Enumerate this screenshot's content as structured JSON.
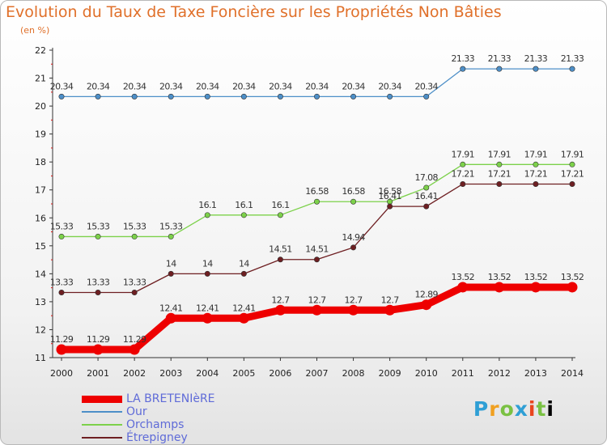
{
  "chart_data": {
    "type": "line",
    "title": "Evolution du Taux de Taxe Foncière sur les Propriétés Non Bâties",
    "subtitle": "(en %)",
    "xlabel": "",
    "ylabel": "",
    "x": [
      "2000",
      "2001",
      "2002",
      "2003",
      "2004",
      "2005",
      "2006",
      "2007",
      "2008",
      "2009",
      "2010",
      "2011",
      "2012",
      "2013",
      "2014"
    ],
    "ylim": [
      11,
      22
    ],
    "yticks": [
      "11",
      "12",
      "13",
      "14",
      "15",
      "16",
      "17",
      "18",
      "19",
      "20",
      "21",
      "22"
    ],
    "grid": false,
    "legend": "bottom-left",
    "series": [
      {
        "name": "LA BRETENIèRE",
        "color": "#ee0000",
        "values": [
          11.29,
          11.29,
          11.29,
          12.41,
          12.41,
          12.41,
          12.7,
          12.7,
          12.7,
          12.7,
          12.89,
          13.52,
          13.52,
          13.52,
          13.52
        ],
        "labels": [
          "11.29",
          "11.29",
          "11.29",
          "12.41",
          "12.41",
          "12.41",
          "12.7",
          "12.7",
          "12.7",
          "12.7",
          "12.89",
          "13.52",
          "13.52",
          "13.52",
          "13.52"
        ]
      },
      {
        "name": "Our",
        "color": "#4d8fc8",
        "values": [
          20.34,
          20.34,
          20.34,
          20.34,
          20.34,
          20.34,
          20.34,
          20.34,
          20.34,
          20.34,
          20.34,
          21.33,
          21.33,
          21.33,
          21.33
        ],
        "labels": [
          "20.34",
          "20.34",
          "20.34",
          "20.34",
          "20.34",
          "20.34",
          "20.34",
          "20.34",
          "20.34",
          "20.34",
          "20.34",
          "21.33",
          "21.33",
          "21.33",
          "21.33"
        ]
      },
      {
        "name": "Orchamps",
        "color": "#7cd14a",
        "values": [
          15.33,
          15.33,
          15.33,
          15.33,
          16.1,
          16.1,
          16.1,
          16.58,
          16.58,
          16.58,
          17.08,
          17.91,
          17.91,
          17.91,
          17.91
        ],
        "labels": [
          "15.33",
          "15.33",
          "15.33",
          "15.33",
          "16.1",
          "16.1",
          "16.1",
          "16.58",
          "16.58",
          "16.58",
          "17.08",
          "17.91",
          "17.91",
          "17.91",
          "17.91"
        ]
      },
      {
        "name": "Étrepigney",
        "color": "#6e1f22",
        "values": [
          13.33,
          13.33,
          13.33,
          14,
          14,
          14,
          14.51,
          14.51,
          14.94,
          16.41,
          16.41,
          17.21,
          17.21,
          17.21,
          17.21
        ],
        "labels": [
          "13.33",
          "13.33",
          "13.33",
          "14",
          "14",
          "14",
          "14.51",
          "14.51",
          "14.94",
          "16.41",
          "16.41",
          "17.21",
          "17.21",
          "17.21",
          "17.21"
        ]
      }
    ]
  },
  "brand": {
    "letters": [
      "P",
      "r",
      "o",
      "x",
      "i",
      "t",
      "i"
    ]
  }
}
